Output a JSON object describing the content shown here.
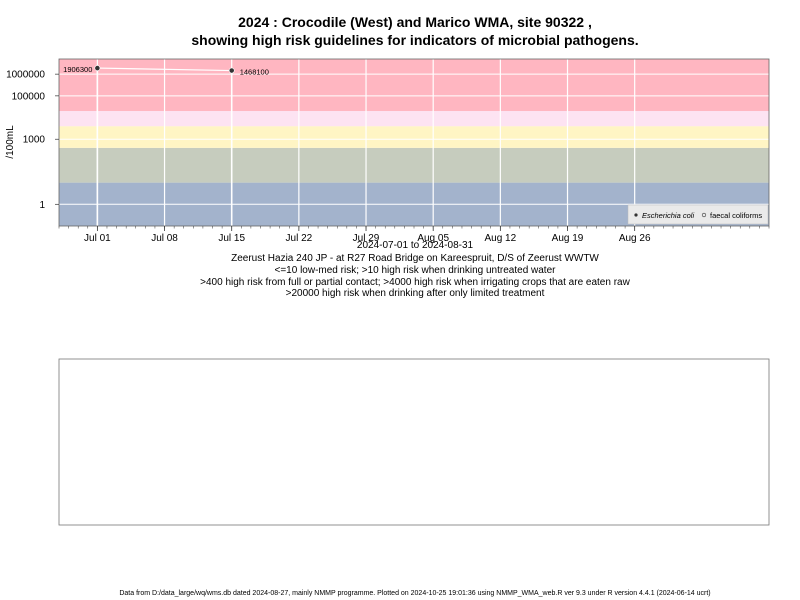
{
  "chart_data": {
    "type": "line",
    "title_line1": "2024 : Crocodile (West) and Marico WMA, site 90322 ,",
    "title_line2": "showing high risk guidelines for indicators of microbial pathogens.",
    "ylabel": "/100mL",
    "yscale": "log",
    "ylim": [
      0.1,
      5000000
    ],
    "y_ticks": [
      {
        "value": 1000000,
        "label": "1000000"
      },
      {
        "value": 100000,
        "label": "100000"
      },
      {
        "value": 1000,
        "label": "1000"
      },
      {
        "value": 1,
        "label": "1"
      }
    ],
    "xlim": [
      "2024-06-27",
      "2024-09-09"
    ],
    "x_ticks": [
      {
        "date": "2024-07-01",
        "label": "Jul 01"
      },
      {
        "date": "2024-07-08",
        "label": "Jul 08"
      },
      {
        "date": "2024-07-15",
        "label": "Jul 15"
      },
      {
        "date": "2024-07-22",
        "label": "Jul 22"
      },
      {
        "date": "2024-07-29",
        "label": "Jul 29"
      },
      {
        "date": "2024-08-05",
        "label": "Aug 05"
      },
      {
        "date": "2024-08-12",
        "label": "Aug 12"
      },
      {
        "date": "2024-08-19",
        "label": "Aug 19"
      },
      {
        "date": "2024-08-26",
        "label": "Aug 26"
      }
    ],
    "xlabel": "2024-07-01 to 2024-08-31",
    "bands": [
      {
        "from": 0.1,
        "to": 10,
        "color": "#a3b3cc"
      },
      {
        "from": 10,
        "to": 400,
        "color": "#c6ccbe"
      },
      {
        "from": 400,
        "to": 4000,
        "color": "#fff5c4"
      },
      {
        "from": 4000,
        "to": 20000,
        "color": "#fde3f2"
      },
      {
        "from": 20000,
        "to": 5000000,
        "color": "#ffb6c1"
      }
    ],
    "series": [
      {
        "name": "Escherichia coli",
        "color": "#ffffff",
        "points": [
          {
            "date": "2024-07-01",
            "value": 1906300,
            "label": "1906300"
          },
          {
            "date": "2024-07-15",
            "value": 1468100,
            "label": "1468100"
          }
        ]
      }
    ],
    "legend": {
      "position": "bottom-right",
      "entries": [
        {
          "label": "Escherichia coli",
          "style": "filled"
        },
        {
          "label": "faecal coliforms",
          "style": "open"
        }
      ]
    }
  },
  "caption": {
    "line1": "Zeerust Hazia 240 JP - at R27 Road Bridge on Kareespruit, D/S of Zeerust WWTW",
    "line2": "<=10 low-med risk; >10 high risk when drinking untreated water",
    "line3": ">400 high risk from full or partial contact; >4000 high risk when irrigating crops that are eaten raw",
    "line4": ">20000 high risk when drinking after only limited treatment"
  },
  "footer": "Data from D:/data_large/wq/wms.db dated 2024-08-27, mainly NMMP programme. Plotted on 2024-10-25 19:01:36 using NMMP_WMA_web.R ver 9.3 under R version 4.4.1 (2024-06-14 ucrt)"
}
